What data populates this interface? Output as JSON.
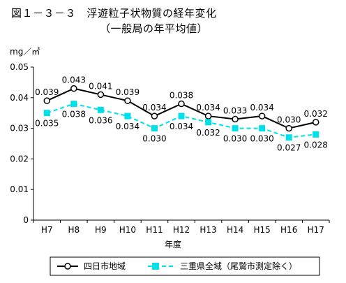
{
  "chart_data": {
    "type": "line",
    "title_line1": "図１－３－３　浮遊粒子状物質の経年変化",
    "title_line2": "（一般局の年平均値）",
    "ylabel": "mg／㎥",
    "xlabel": "年度",
    "ylim": [
      0,
      0.05
    ],
    "yticks": [
      "0",
      "0.01",
      "0.02",
      "0.03",
      "0.04",
      "0.05"
    ],
    "ytick_values": [
      0,
      0.01,
      0.02,
      0.03,
      0.04,
      0.05
    ],
    "categories": [
      "H7",
      "H8",
      "H9",
      "H10",
      "H11",
      "H12",
      "H13",
      "H14",
      "H15",
      "H16",
      "H17"
    ],
    "grid": false,
    "legend_position": "bottom",
    "series": [
      {
        "name": "四日市地域",
        "color": "#000000",
        "marker": "open-circle",
        "line_style": "solid",
        "values": [
          0.039,
          0.043,
          0.041,
          0.039,
          0.034,
          0.038,
          0.034,
          0.033,
          0.034,
          0.03,
          0.032
        ],
        "labels": [
          "0.039",
          "0.043",
          "0.041",
          "0.039",
          "0.034",
          "0.038",
          "0.034",
          "0.033",
          "0.034",
          "0.030",
          "0.032"
        ]
      },
      {
        "name": "三重県全域（尾鷲市測定除く）",
        "color": "#00e0e8",
        "marker": "filled-square",
        "line_style": "dashed",
        "values": [
          0.035,
          0.038,
          0.036,
          0.034,
          0.03,
          0.034,
          0.032,
          0.03,
          0.03,
          0.027,
          0.028
        ],
        "labels": [
          "0.035",
          "0.038",
          "0.036",
          "0.034",
          "0.030",
          "0.034",
          "0.032",
          "0.030",
          "0.030",
          "0.027",
          "0.028"
        ]
      }
    ]
  }
}
